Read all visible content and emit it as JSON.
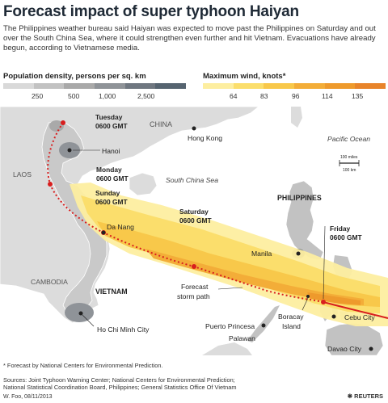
{
  "title": "Forecast impact of super typhoon Haiyan",
  "subtitle": "The Philippines weather bureau said Haiyan was expected to move past the Philippines on Saturday and out over the South China Sea, where it could strengthen even further and hit Vietnam. Evacuations have already begun, according to Vietnamese media.",
  "legend_population": {
    "title": "Population density, persons per sq. km",
    "ticks": [
      "250",
      "500",
      "1,000",
      "2,500"
    ],
    "colors": [
      "#d9d9d9",
      "#c2c2c2",
      "#a9a9a9",
      "#8f9398",
      "#6f7780",
      "#566470"
    ]
  },
  "legend_wind": {
    "title": "Maximum wind, knots*",
    "ticks": [
      "64",
      "83",
      "96",
      "114",
      "135"
    ],
    "colors": [
      "#fdeea0",
      "#fbde6c",
      "#f8c84a",
      "#f3ad38",
      "#ee9a2c",
      "#e8842a"
    ]
  },
  "map_labels": {
    "china": "CHINA",
    "hong_kong": "Hong Kong",
    "pacific": "Pacific Ocean",
    "scale_miles": "100 miles",
    "scale_km": "100 km",
    "laos": "LAOS",
    "south_china_sea": "South China Sea",
    "philippines": "PHILIPPINES",
    "hanoi": "Hanoi",
    "da_nang": "Da Nang",
    "cambodia": "CAMBODIA",
    "vietnam": "VIETNAM",
    "hcmc": "Ho Chi Minh City",
    "manila": "Manila",
    "puerto_princesa": "Puerto Princesa",
    "palawan": "Palawan",
    "boracay_1": "Boracay",
    "boracay_2": "Island",
    "cebu": "Cebu City",
    "davao": "Davao City",
    "forecast_path_1": "Forecast",
    "forecast_path_2": "storm path"
  },
  "time_labels": [
    {
      "day": "Tuesday",
      "time": "0600 GMT"
    },
    {
      "day": "Monday",
      "time": "0600 GMT"
    },
    {
      "day": "Sunday",
      "time": "0600 GMT"
    },
    {
      "day": "Saturday",
      "time": "0600 GMT"
    },
    {
      "day": "Friday",
      "time": "0600 GMT"
    }
  ],
  "colors": {
    "sea": "#ffffff",
    "land": "#dcdcdc",
    "border": "#ffffff",
    "track": "#d81e1e"
  },
  "footnote": "* Forecast by National Centers for Environmental Prediction.",
  "sources_1": "Sources: Joint Typhoon Warning Center; National Centers for Environmental Prediction;",
  "sources_2": "National Statistical Coordination Board, Philippines; General Statistics Office Of Vietnam",
  "credit": "W. Foo, 08/11/2013",
  "logo_text": "REUTERS"
}
